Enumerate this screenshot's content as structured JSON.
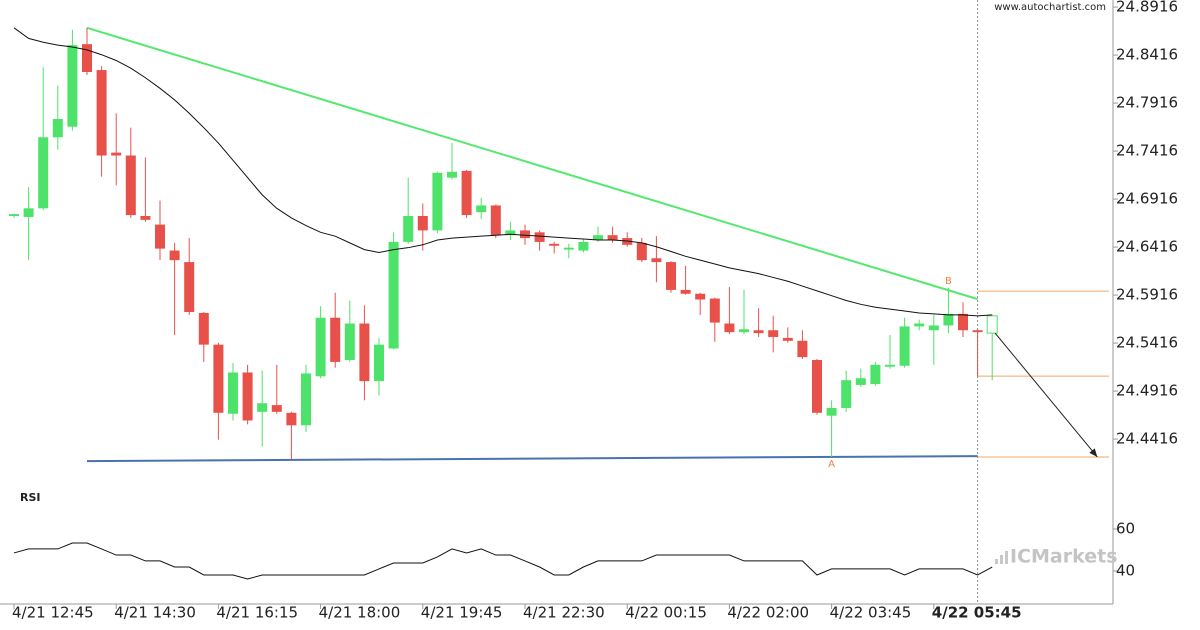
{
  "chart_data": [
    {
      "type": "candlestick",
      "watermark": "www.autochartist.com",
      "logo": "ICMarkets",
      "categories": [
        "4/21 12:45",
        null,
        null,
        null,
        null,
        null,
        null,
        "4/21 14:30",
        null,
        null,
        null,
        null,
        null,
        null,
        "4/21 16:15",
        null,
        null,
        null,
        null,
        null,
        null,
        "4/21 18:00",
        null,
        null,
        null,
        null,
        null,
        null,
        "4/21 19:45",
        null,
        null,
        null,
        null,
        null,
        null,
        "4/21 22:30",
        null,
        null,
        null,
        null,
        null,
        null,
        "4/22 00:15",
        null,
        null,
        null,
        null,
        null,
        null,
        "4/22 02:00",
        null,
        null,
        null,
        null,
        null,
        null,
        "4/22 03:45",
        null,
        null,
        null,
        null,
        null,
        null,
        "4/22 05:45",
        null,
        null,
        null,
        null
      ],
      "open": [
        24.674,
        24.673,
        24.682,
        24.756,
        24.767,
        24.853,
        24.826,
        24.74,
        24.737,
        24.674,
        24.665,
        24.638,
        24.626,
        24.573,
        24.54,
        24.468,
        24.511,
        24.47,
        24.477,
        24.469,
        24.456,
        24.507,
        24.568,
        24.524,
        24.562,
        24.502,
        24.536,
        24.647,
        24.674,
        24.659,
        24.714,
        24.721,
        24.678,
        24.685,
        24.654,
        24.659,
        24.657,
        24.645,
        24.639,
        24.638,
        24.649,
        24.654,
        24.651,
        24.646,
        24.63,
        24.626,
        24.597,
        24.593,
        24.588,
        24.562,
        24.553,
        24.555,
        24.555,
        24.547,
        24.544,
        24.524,
        24.466,
        24.474,
        24.498,
        24.499,
        24.517,
        24.518,
        24.559,
        24.555,
        24.56,
        24.572,
        24.555,
        24.552
      ],
      "high": [
        24.676,
        24.704,
        24.829,
        24.81,
        24.868,
        24.87,
        24.83,
        24.781,
        24.766,
        24.735,
        24.69,
        24.646,
        24.651,
        24.574,
        24.542,
        24.521,
        24.519,
        24.513,
        24.519,
        24.47,
        24.519,
        24.58,
        24.594,
        24.586,
        24.581,
        24.547,
        24.657,
        24.714,
        24.687,
        24.72,
        24.75,
        24.722,
        24.693,
        24.686,
        24.668,
        24.665,
        24.659,
        24.647,
        24.645,
        24.65,
        24.663,
        24.663,
        24.657,
        24.651,
        24.653,
        24.627,
        24.622,
        24.594,
        24.589,
        24.6,
        24.597,
        24.578,
        24.57,
        24.558,
        24.555,
        24.525,
        24.482,
        24.513,
        24.515,
        24.522,
        24.55,
        24.568,
        24.566,
        24.571,
        24.599,
        24.584,
        24.556,
        24.571
      ],
      "low": [
        24.672,
        24.628,
        24.68,
        24.743,
        24.763,
        24.821,
        24.715,
        24.706,
        24.672,
        24.668,
        24.628,
        24.55,
        24.571,
        24.522,
        24.441,
        24.461,
        24.457,
        24.434,
        24.468,
        24.42,
        24.449,
        24.505,
        24.516,
        24.522,
        24.482,
        24.487,
        24.535,
        24.645,
        24.638,
        24.656,
        24.712,
        24.672,
        24.671,
        24.651,
        24.649,
        24.644,
        24.638,
        24.635,
        24.63,
        24.636,
        24.647,
        24.646,
        24.642,
        24.626,
        24.605,
        24.594,
        24.592,
        24.571,
        24.543,
        24.551,
        24.551,
        24.548,
        24.532,
        24.542,
        24.525,
        24.467,
        24.423,
        24.47,
        24.496,
        24.497,
        24.515,
        24.516,
        24.555,
        24.519,
        24.552,
        24.548,
        24.507,
        24.503
      ],
      "close": [
        24.676,
        24.682,
        24.756,
        24.775,
        24.852,
        24.824,
        24.737,
        24.737,
        24.675,
        24.67,
        24.64,
        24.628,
        24.574,
        24.54,
        24.469,
        24.511,
        24.461,
        24.479,
        24.47,
        24.456,
        24.51,
        24.568,
        24.522,
        24.562,
        24.502,
        24.54,
        24.647,
        24.674,
        24.659,
        24.719,
        24.72,
        24.675,
        24.685,
        24.654,
        24.659,
        24.651,
        24.647,
        24.643,
        24.641,
        24.647,
        24.654,
        24.649,
        24.644,
        24.628,
        24.626,
        24.597,
        24.593,
        24.587,
        24.563,
        24.553,
        24.556,
        24.552,
        24.548,
        24.544,
        24.527,
        24.469,
        24.474,
        24.503,
        24.505,
        24.519,
        24.519,
        24.559,
        24.562,
        24.56,
        24.572,
        24.555,
        24.553,
        24.57
      ],
      "up_color": "#4de36a",
      "down_color": "#e8504a",
      "series": [
        {
          "color": "#111111",
          "values": [
            24.87,
            24.859,
            24.855,
            24.852,
            24.85,
            24.847,
            24.842,
            24.836,
            24.828,
            24.818,
            24.807,
            24.795,
            24.781,
            24.766,
            24.75,
            24.732,
            24.714,
            24.696,
            24.682,
            24.672,
            24.664,
            24.657,
            24.653,
            24.646,
            24.639,
            24.636,
            24.639,
            24.641,
            24.644,
            24.649,
            24.651,
            24.652,
            24.653,
            24.654,
            24.655,
            24.654,
            24.653,
            24.652,
            24.651,
            24.65,
            24.649,
            24.649,
            24.648,
            24.646,
            24.642,
            24.637,
            24.632,
            24.628,
            24.624,
            24.62,
            24.617,
            24.614,
            24.61,
            24.606,
            24.601,
            24.596,
            24.591,
            24.586,
            24.582,
            24.579,
            24.577,
            24.575,
            24.573,
            24.572,
            24.571,
            24.571,
            24.57,
            24.571
          ]
        }
      ],
      "trend_lines": [
        {
          "color": "#55e86f",
          "x": [
            5,
            66
          ],
          "values": [
            24.87,
            24.5874
          ]
        },
        {
          "color": "#4a72b0",
          "x": [
            5,
            66
          ],
          "values": [
            24.4187,
            24.4239
          ]
        }
      ],
      "levels": [
        {
          "color": "#f0a868",
          "x": [
            66,
            75
          ],
          "value": 24.5958
        },
        {
          "color": "#f0a868",
          "x": [
            66,
            75
          ],
          "value": 24.5072
        },
        {
          "color": "#f0a868",
          "x": [
            66,
            75
          ],
          "value": 24.4229
        }
      ],
      "points": [
        {
          "label": "A",
          "x": 56,
          "value": 24.423,
          "color": "#f08040"
        },
        {
          "label": "B",
          "x": 64,
          "value": 24.599,
          "color": "#f08040"
        }
      ],
      "arrow": {
        "color": "#222222",
        "x": [
          67.2,
          74.2
        ],
        "values": [
          24.552,
          24.423
        ]
      },
      "cursor_x": 66,
      "ylim": [
        24.399,
        24.899
      ],
      "yticks": [
        24.8916,
        24.8416,
        24.7916,
        24.7416,
        24.6916,
        24.6416,
        24.5916,
        24.5416,
        24.4916,
        24.4416
      ]
    },
    {
      "type": "line",
      "title": "RSI",
      "color": "#111111",
      "values": [
        48.6,
        50.5,
        50.5,
        50.5,
        53.3,
        53.3,
        50.5,
        47.6,
        47.6,
        44.8,
        44.8,
        41.9,
        41.9,
        38.1,
        38.1,
        38.1,
        36.2,
        38.1,
        38.1,
        38.1,
        38.1,
        38.1,
        38.1,
        38.1,
        38.1,
        41.0,
        43.8,
        43.8,
        43.8,
        46.7,
        50.5,
        48.6,
        50.5,
        47.6,
        47.6,
        44.8,
        41.9,
        38.1,
        38.1,
        41.9,
        44.8,
        44.8,
        44.8,
        44.8,
        47.6,
        47.6,
        47.6,
        47.6,
        47.6,
        47.6,
        44.8,
        44.8,
        44.8,
        44.8,
        44.8,
        38.1,
        41.0,
        41.0,
        41.0,
        41.0,
        41.0,
        38.1,
        41.0,
        41.0,
        41.0,
        41.0,
        38.1,
        41.9
      ],
      "ylim": [
        24.3,
        83.3
      ],
      "yticks": [
        60,
        40
      ]
    }
  ]
}
